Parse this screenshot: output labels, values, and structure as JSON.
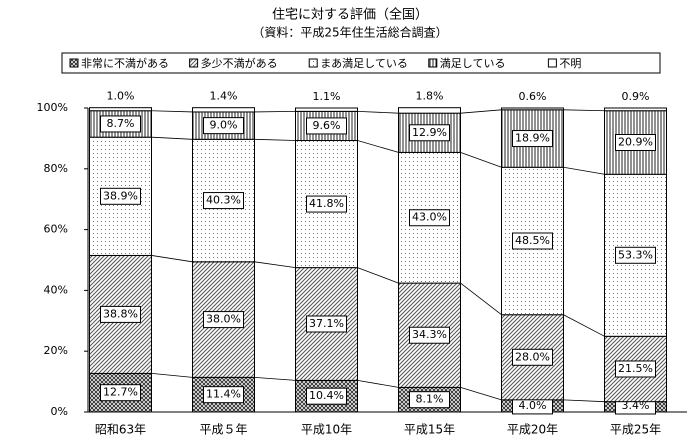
{
  "chart_data": {
    "type": "stacked_bar",
    "title": "住宅に対する評価（全国）",
    "subtitle": "（資料：平成25年住生活総合調査）",
    "categories": [
      "昭和63年",
      "平成５年",
      "平成10年",
      "平成15年",
      "平成20年",
      "平成25年"
    ],
    "series": [
      {
        "name": "非常に不満がある",
        "color": "#333333",
        "values": [
          12.7,
          11.4,
          10.4,
          8.1,
          4.0,
          3.4
        ],
        "value_labels": [
          "12.7%",
          "11.4%",
          "10.4%",
          "8.1%",
          "4.0%",
          "3.4%"
        ]
      },
      {
        "name": "多少不満がある",
        "color": "#555555",
        "values": [
          38.8,
          38.0,
          37.1,
          34.3,
          28.0,
          21.5
        ],
        "value_labels": [
          "38.8%",
          "38.0%",
          "37.1%",
          "34.3%",
          "28.0%",
          "21.5%"
        ]
      },
      {
        "name": "まあ満足している",
        "color": "#777777",
        "values": [
          38.9,
          40.3,
          41.8,
          43.0,
          48.5,
          53.3
        ],
        "value_labels": [
          "38.9%",
          "40.3%",
          "41.8%",
          "43.0%",
          "48.5%",
          "53.3%"
        ]
      },
      {
        "name": "満足している",
        "color": "#222222",
        "values": [
          8.7,
          9.0,
          9.6,
          12.9,
          18.9,
          20.9
        ],
        "value_labels": [
          "8.7%",
          "9.0%",
          "9.6%",
          "12.9%",
          "18.9%",
          "20.9%"
        ]
      },
      {
        "name": "不明",
        "color": "#ffffff",
        "values": [
          1.0,
          1.4,
          1.1,
          1.8,
          0.6,
          0.9
        ],
        "value_labels": [
          "1.0%",
          "1.4%",
          "1.1%",
          "1.8%",
          "0.6%",
          "0.9%"
        ]
      }
    ],
    "ylim": [
      0,
      100
    ],
    "yticks": [
      {
        "value": 0,
        "label": "0%"
      },
      {
        "value": 20,
        "label": "20%"
      },
      {
        "value": 40,
        "label": "40%"
      },
      {
        "value": 60,
        "label": "60%"
      },
      {
        "value": 80,
        "label": "80%"
      },
      {
        "value": 100,
        "label": "100%"
      }
    ]
  }
}
